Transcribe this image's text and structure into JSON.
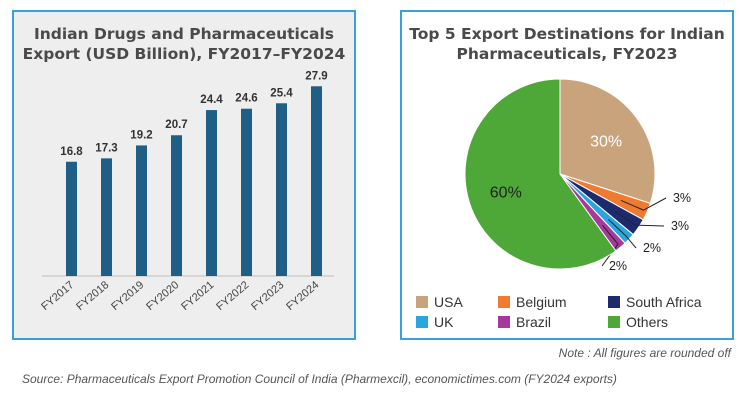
{
  "note": "Note : All figures are rounded off",
  "source": "Source: Pharmaceuticals Export Promotion Council of India (Pharmexcil), economictimes.com (FY2024 exports)",
  "chart_data": [
    {
      "type": "bar",
      "title": "Indian Drugs and Pharmaceuticals Export (USD Billion), FY2017–FY2024",
      "title_lines": [
        "Indian Drugs and Pharmaceuticals",
        "Export (USD Billion), FY2017–FY2024"
      ],
      "categories": [
        "FY2017",
        "FY2018",
        "FY2019",
        "FY2020",
        "FY2021",
        "FY2022",
        "FY2023",
        "FY2024"
      ],
      "values": [
        16.8,
        17.3,
        19.2,
        20.7,
        24.4,
        24.6,
        25.4,
        27.9
      ],
      "value_labels": [
        "16.8",
        "17.3",
        "19.2",
        "20.7",
        "24.4",
        "24.6",
        "25.4",
        "27.9"
      ],
      "ylim": [
        0,
        30
      ],
      "bar_color": "#1f5f86",
      "grid": false
    },
    {
      "type": "pie",
      "title": "Top 5 Export Destinations for Indian Pharmaceuticals, FY2023",
      "title_lines": [
        "Top 5 Export Destinations for Indian",
        "Pharmaceuticals, FY2023"
      ],
      "slices": [
        {
          "name": "USA",
          "value": 30,
          "label": "30%",
          "color": "#c9a37c"
        },
        {
          "name": "Belgium",
          "value": 3,
          "label": "3%",
          "color": "#ef7b30"
        },
        {
          "name": "South Africa",
          "value": 3,
          "label": "3%",
          "color": "#1e2a6e"
        },
        {
          "name": "UK",
          "value": 2,
          "label": "2%",
          "color": "#2aa6de"
        },
        {
          "name": "Brazil",
          "value": 2,
          "label": "2%",
          "color": "#a5399e"
        },
        {
          "name": "Others",
          "value": 60,
          "label": "60%",
          "color": "#4ea837"
        }
      ],
      "legend_position": "bottom"
    }
  ]
}
